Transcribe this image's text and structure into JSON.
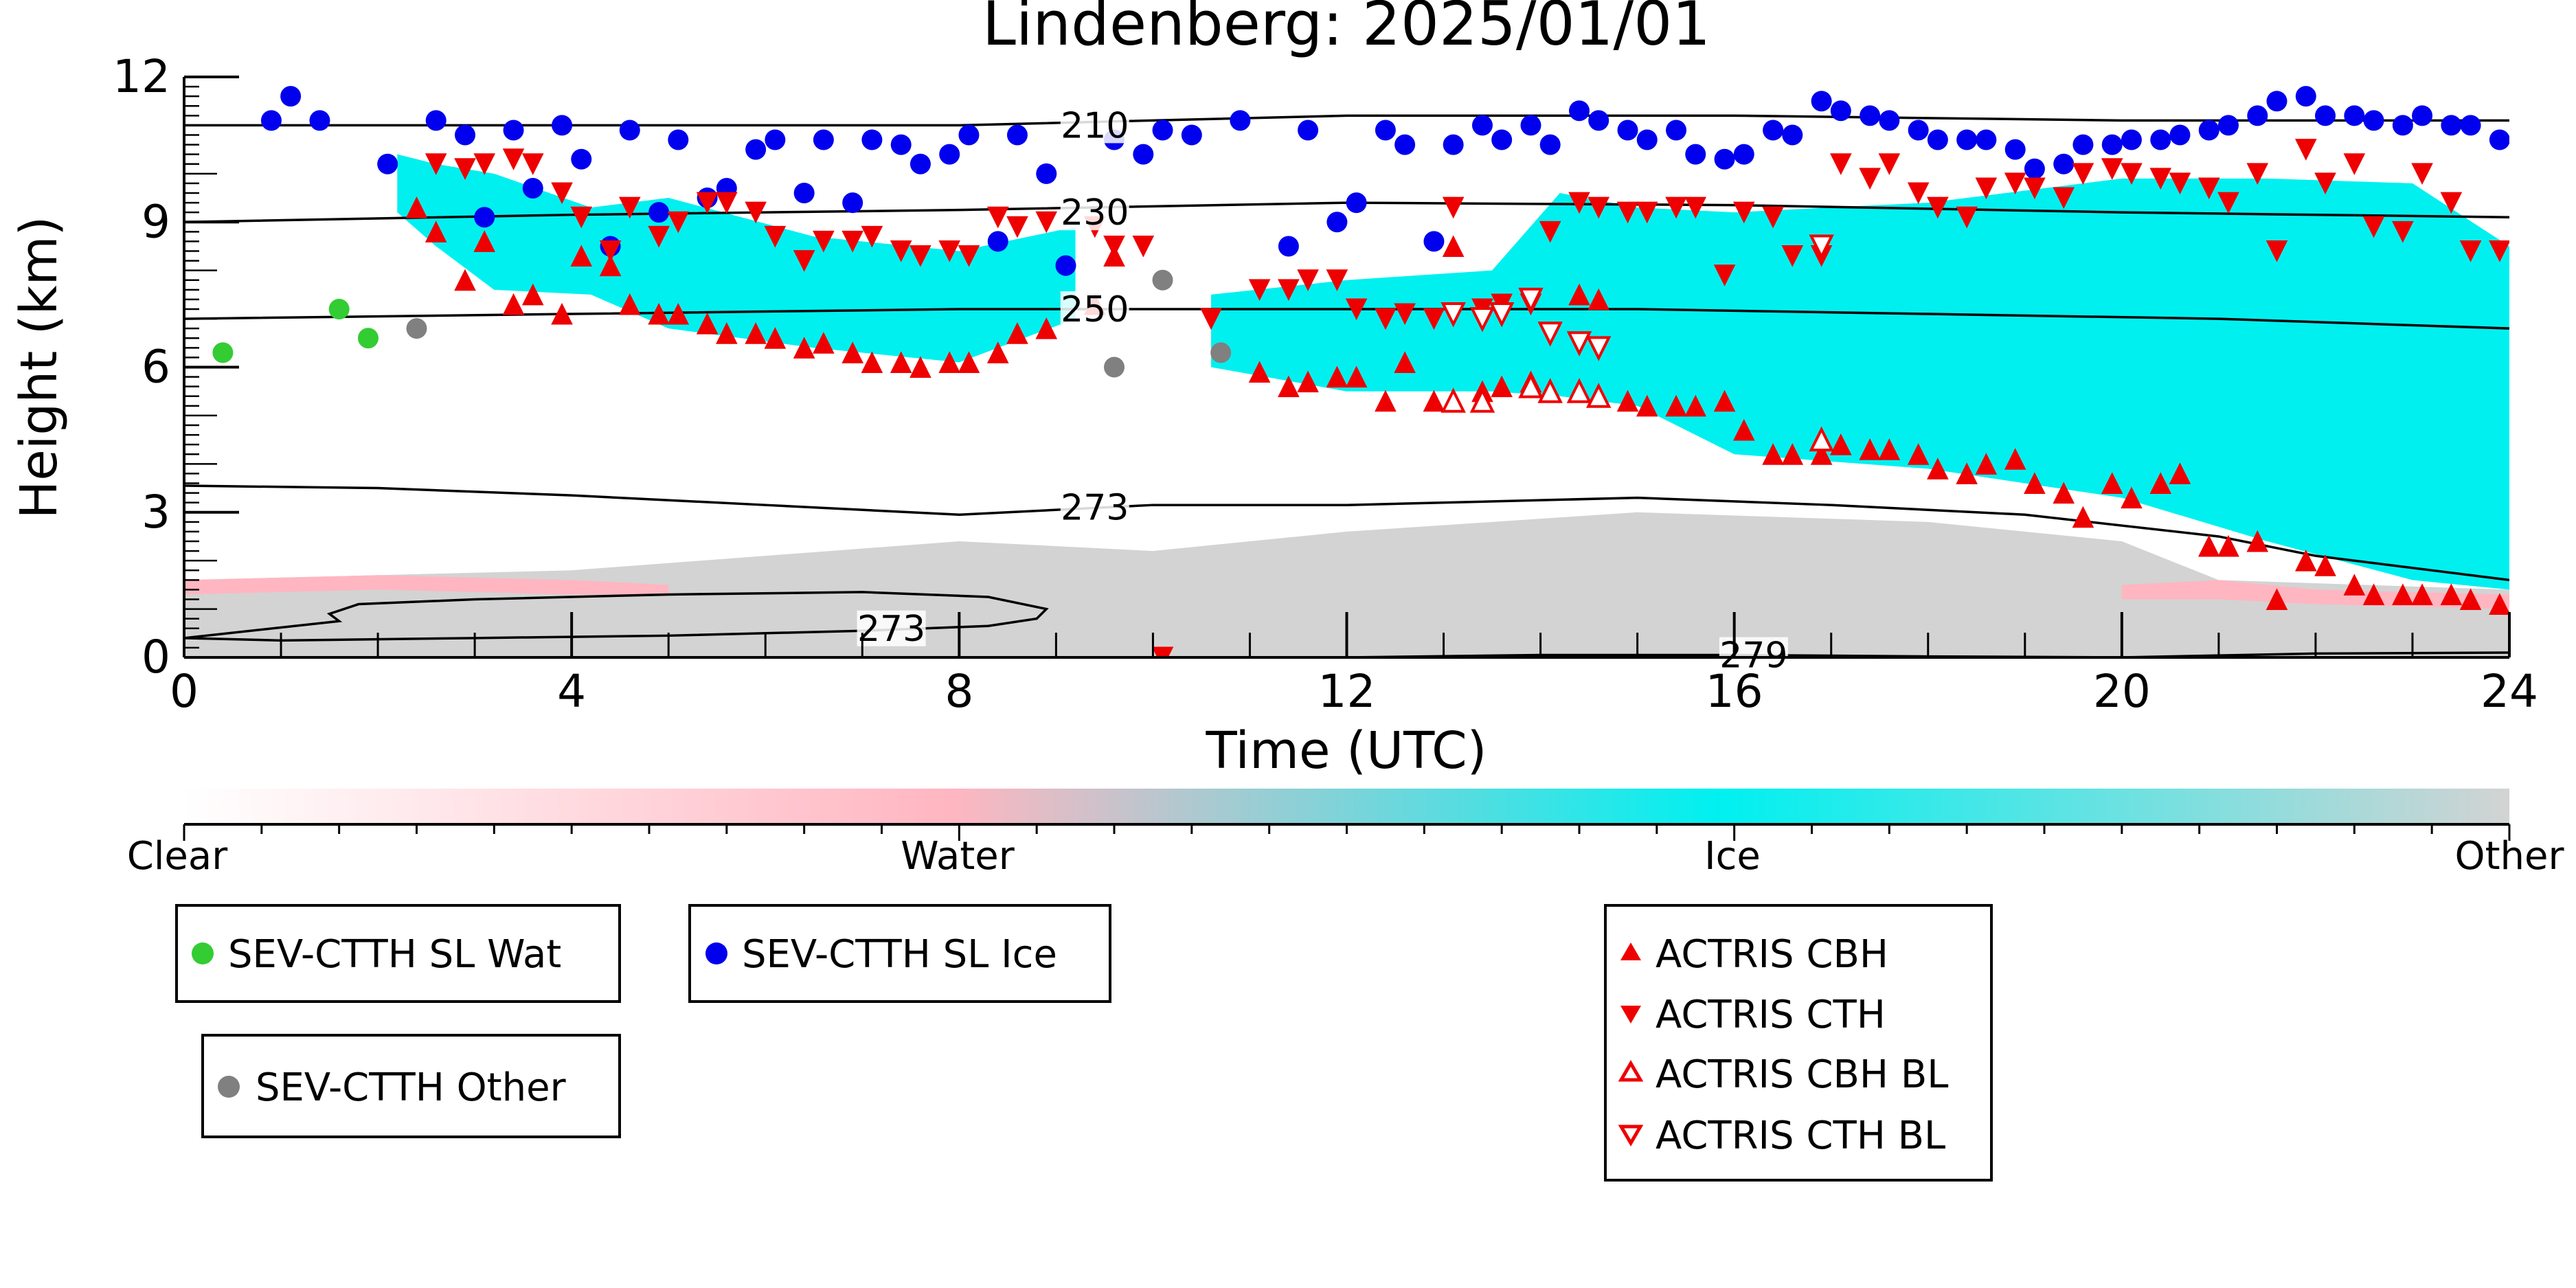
{
  "chart_data": {
    "type": "scatter",
    "title": "Lindenberg: 2025/01/01",
    "xlabel": "Time (UTC)",
    "ylabel": "Height (km)",
    "xlim": [
      0,
      24
    ],
    "ylim": [
      0,
      12
    ],
    "xticks": [
      0,
      4,
      8,
      12,
      16,
      20,
      24
    ],
    "yticks": [
      0,
      3,
      6,
      9,
      12
    ],
    "background_field": {
      "description_classes": [
        "Clear",
        "Water",
        "Ice",
        "Other"
      ],
      "colorbar_labels": [
        "Clear",
        "Water",
        "Ice",
        "Other"
      ],
      "colorbar_colors": [
        "#ffffff",
        "#ffb6c1",
        "#00ffff",
        "#d3d3d3"
      ],
      "ice_regions": [
        {
          "x": [
            2.2,
            2.6,
            3.2,
            4.2,
            5.0,
            6.5,
            8.0,
            9.2
          ],
          "top": [
            10.4,
            10.2,
            10.0,
            9.3,
            9.5,
            8.7,
            8.4,
            8.9
          ],
          "bottom": [
            9.2,
            8.5,
            7.6,
            7.5,
            6.8,
            6.4,
            6.1,
            7.0
          ]
        },
        {
          "x": [
            10.6,
            12.0,
            13.5,
            14.2,
            15.0,
            16.0,
            18.0,
            20.0,
            21.5,
            23.0,
            24.0
          ],
          "top": [
            7.5,
            7.8,
            8.0,
            9.6,
            9.3,
            9.2,
            9.4,
            9.9,
            9.9,
            9.8,
            8.5
          ],
          "bottom": [
            6.0,
            5.5,
            5.5,
            5.4,
            5.2,
            4.2,
            3.9,
            3.3,
            2.4,
            1.6,
            1.4
          ]
        }
      ],
      "other_regions": [
        {
          "x": [
            0.0,
            4.0,
            8.0,
            10.0,
            12.0,
            15.0,
            18.0,
            20.0,
            21.0,
            24.0
          ],
          "top": [
            1.6,
            1.8,
            2.4,
            2.2,
            2.6,
            3.0,
            2.8,
            2.4,
            1.6,
            1.4
          ],
          "bottom": [
            0,
            0,
            0,
            0,
            0,
            0,
            0,
            0,
            0,
            0
          ]
        }
      ],
      "water_regions": [
        {
          "x": [
            0.0,
            2.0,
            4.0,
            5.0
          ],
          "top": [
            1.6,
            1.7,
            1.6,
            1.5
          ],
          "bottom": [
            1.3,
            1.4,
            1.3,
            1.3
          ]
        },
        {
          "x": [
            20.0,
            21.0,
            22.0,
            24.0
          ],
          "top": [
            1.5,
            1.6,
            1.4,
            1.3
          ],
          "bottom": [
            1.2,
            1.2,
            1.1,
            1.0
          ]
        }
      ]
    },
    "contours": [
      {
        "label": "210",
        "label_x": 9.4,
        "label_y": 11.0,
        "x": [
          0,
          4,
          8,
          12,
          16,
          20,
          24
        ],
        "y": [
          11.0,
          11.0,
          11.0,
          11.2,
          11.2,
          11.1,
          11.1
        ]
      },
      {
        "label": "230",
        "label_x": 9.4,
        "label_y": 9.2,
        "x": [
          0,
          4,
          8,
          12,
          16,
          20,
          24
        ],
        "y": [
          9.0,
          9.15,
          9.25,
          9.4,
          9.35,
          9.2,
          9.1
        ]
      },
      {
        "label": "250",
        "label_x": 9.4,
        "label_y": 7.2,
        "x": [
          0,
          4,
          8,
          12,
          15,
          18,
          21,
          24
        ],
        "y": [
          7.0,
          7.1,
          7.2,
          7.2,
          7.2,
          7.1,
          7.0,
          6.8
        ]
      },
      {
        "label": "273",
        "label_x": 9.4,
        "label_y": 3.1,
        "x": [
          0,
          2,
          4,
          6,
          8,
          10,
          12,
          15,
          17,
          19,
          21,
          22,
          24
        ],
        "y": [
          3.55,
          3.5,
          3.35,
          3.15,
          2.95,
          3.15,
          3.15,
          3.3,
          3.15,
          2.95,
          2.5,
          2.1,
          1.6
        ]
      },
      {
        "label": "273",
        "label_x": 7.3,
        "label_y": 0.6,
        "closed": true,
        "x": [
          0,
          1.6,
          1.5,
          1.8,
          3.0,
          5.0,
          7.0,
          8.3,
          8.9,
          8.8,
          8.3,
          7.0,
          5.0,
          3.0,
          1.0,
          0
        ],
        "y": [
          0.4,
          0.75,
          0.9,
          1.1,
          1.2,
          1.3,
          1.35,
          1.25,
          1.0,
          0.8,
          0.65,
          0.55,
          0.45,
          0.4,
          0.35,
          0.4
        ]
      },
      {
        "label": "279",
        "label_x": 16.2,
        "label_y": 0.05,
        "x": [
          12,
          14,
          16,
          18,
          20,
          22,
          24
        ],
        "y": [
          0.0,
          0.05,
          0.05,
          0.02,
          0.0,
          0.08,
          0.1
        ]
      }
    ],
    "legend": [
      {
        "name": "SEV-CTTH SL Wat",
        "marker": "circle",
        "color": "#33cc33"
      },
      {
        "name": "SEV-CTTH SL Ice",
        "marker": "circle",
        "color": "#0000ee"
      },
      {
        "name": "SEV-CTTH Other",
        "marker": "circle",
        "color": "#808080"
      },
      {
        "name": "ACTRIS CBH",
        "marker": "triangle-up",
        "color": "#ee0000",
        "filled": true
      },
      {
        "name": "ACTRIS CTH",
        "marker": "triangle-down",
        "color": "#ee0000",
        "filled": true
      },
      {
        "name": "ACTRIS CBH BL",
        "marker": "triangle-up",
        "color": "#ee0000",
        "filled": false
      },
      {
        "name": "ACTRIS CTH BL",
        "marker": "triangle-down",
        "color": "#ee0000",
        "filled": false
      }
    ],
    "series": [
      {
        "name": "SEV-CTTH SL Wat",
        "marker": "circle",
        "color": "#33cc33",
        "x": [
          0.4,
          1.6,
          1.9
        ],
        "y": [
          6.3,
          7.2,
          6.6
        ]
      },
      {
        "name": "SEV-CTTH SL Ice",
        "marker": "circle",
        "color": "#0000ee",
        "x": [
          0.9,
          1.1,
          1.4,
          2.1,
          2.6,
          2.9,
          3.1,
          3.4,
          3.6,
          3.9,
          4.1,
          4.4,
          4.6,
          4.9,
          5.1,
          5.4,
          5.6,
          5.9,
          6.1,
          6.4,
          6.6,
          6.9,
          7.1,
          7.4,
          7.6,
          7.9,
          8.1,
          8.4,
          8.6,
          8.9,
          9.1,
          9.6,
          9.9,
          10.1,
          10.4,
          10.9,
          11.4,
          11.6,
          11.9,
          12.1,
          12.4,
          12.6,
          12.9,
          13.1,
          13.4,
          13.6,
          13.9,
          14.1,
          14.4,
          14.6,
          14.9,
          15.1,
          15.4,
          15.6,
          15.9,
          16.1,
          16.4,
          16.6,
          16.9,
          17.1,
          17.4,
          17.6,
          17.9,
          18.1,
          18.4,
          18.6,
          18.9,
          19.1,
          19.4,
          19.6,
          19.9,
          20.1,
          20.4,
          20.6,
          20.9,
          21.1,
          21.4,
          21.6,
          21.9,
          22.1,
          22.4,
          22.6,
          22.9,
          23.1,
          23.4,
          23.6,
          23.9
        ],
        "y": [
          11.1,
          11.6,
          11.1,
          10.2,
          11.1,
          10.8,
          9.1,
          10.9,
          9.7,
          11.0,
          10.3,
          8.5,
          10.9,
          9.2,
          10.7,
          9.5,
          9.7,
          10.5,
          10.7,
          9.6,
          10.7,
          9.4,
          10.7,
          10.6,
          10.2,
          10.4,
          10.8,
          8.6,
          10.8,
          10.0,
          8.1,
          10.7,
          10.4,
          10.9,
          10.8,
          11.1,
          8.5,
          10.9,
          9.0,
          9.4,
          10.9,
          10.6,
          8.6,
          10.6,
          11.0,
          10.7,
          11.0,
          10.6,
          11.3,
          11.1,
          10.9,
          10.7,
          10.9,
          10.4,
          10.3,
          10.4,
          10.9,
          10.8,
          11.5,
          11.3,
          11.2,
          11.1,
          10.9,
          10.7,
          10.7,
          10.7,
          10.5,
          10.1,
          10.2,
          10.6,
          10.6,
          10.7,
          10.7,
          10.8,
          10.9,
          11.0,
          11.2,
          11.5,
          11.6,
          11.2,
          11.2,
          11.1,
          11.0,
          11.2,
          11.0,
          11.0,
          10.7
        ]
      },
      {
        "name": "SEV-CTTH Other",
        "marker": "circle",
        "color": "#808080",
        "x": [
          2.4,
          9.6,
          10.1,
          10.7
        ],
        "y": [
          6.8,
          6.0,
          7.8,
          6.3
        ]
      },
      {
        "name": "ACTRIS CBH",
        "marker": "triangle-up",
        "color": "#ee0000",
        "filled": true,
        "x": [
          2.4,
          2.6,
          2.9,
          3.1,
          3.4,
          3.6,
          3.9,
          4.1,
          4.4,
          4.6,
          4.9,
          5.1,
          5.4,
          5.6,
          5.9,
          6.1,
          6.4,
          6.6,
          6.9,
          7.1,
          7.4,
          7.6,
          7.9,
          8.1,
          8.4,
          8.6,
          8.9,
          9.4,
          9.6,
          10.1,
          11.1,
          11.4,
          11.6,
          11.9,
          12.1,
          12.4,
          12.6,
          12.9,
          13.1,
          13.4,
          13.6,
          13.9,
          14.4,
          14.6,
          14.9,
          15.1,
          15.4,
          15.6,
          15.9,
          16.1,
          16.4,
          16.6,
          16.9,
          17.1,
          17.4,
          17.6,
          17.9,
          18.1,
          18.4,
          18.6,
          18.9,
          19.1,
          19.4,
          19.6,
          19.9,
          20.1,
          20.4,
          20.6,
          20.9,
          21.1,
          21.4,
          21.6,
          21.9,
          22.1,
          22.4,
          22.6,
          22.9,
          23.1,
          23.4,
          23.6,
          23.9
        ],
        "y": [
          9.3,
          8.8,
          7.8,
          8.6,
          7.3,
          7.5,
          7.1,
          8.3,
          8.1,
          7.3,
          7.1,
          7.1,
          6.9,
          6.7,
          6.7,
          6.6,
          6.4,
          6.5,
          6.3,
          6.1,
          6.1,
          6.0,
          6.1,
          6.1,
          6.3,
          6.7,
          6.8,
          7.3,
          8.3,
          0.0,
          5.9,
          5.6,
          5.7,
          5.8,
          5.8,
          5.3,
          6.1,
          5.3,
          8.5,
          5.5,
          5.6,
          5.7,
          7.5,
          7.4,
          5.3,
          5.2,
          5.2,
          5.2,
          5.3,
          4.7,
          4.2,
          4.2,
          4.2,
          4.4,
          4.3,
          4.3,
          4.2,
          3.9,
          3.8,
          4.0,
          4.1,
          3.6,
          3.4,
          2.9,
          3.6,
          3.3,
          3.6,
          3.8,
          2.3,
          2.3,
          2.4,
          1.2,
          2.0,
          1.9,
          1.5,
          1.3,
          1.3,
          1.3,
          1.3,
          1.2,
          1.1
        ]
      },
      {
        "name": "ACTRIS CTH",
        "marker": "triangle-down",
        "color": "#ee0000",
        "filled": true,
        "x": [
          2.6,
          2.9,
          3.1,
          3.4,
          3.6,
          3.9,
          4.1,
          4.4,
          4.6,
          4.9,
          5.1,
          5.4,
          5.6,
          5.9,
          6.1,
          6.4,
          6.6,
          6.9,
          7.1,
          7.4,
          7.6,
          7.9,
          8.1,
          8.4,
          8.6,
          8.9,
          9.4,
          9.6,
          9.9,
          10.1,
          10.6,
          11.1,
          11.4,
          11.6,
          11.9,
          12.1,
          12.4,
          12.6,
          12.9,
          13.1,
          13.4,
          13.6,
          13.9,
          14.1,
          14.4,
          14.6,
          14.9,
          15.1,
          15.4,
          15.6,
          15.9,
          16.1,
          16.4,
          16.6,
          16.9,
          17.1,
          17.4,
          17.6,
          17.9,
          18.1,
          18.4,
          18.6,
          18.9,
          19.1,
          19.4,
          19.6,
          19.9,
          20.1,
          20.4,
          20.6,
          20.9,
          21.1,
          21.4,
          21.6,
          21.9,
          22.1,
          22.4,
          22.6,
          22.9,
          23.1,
          23.4,
          23.6,
          23.9
        ],
        "y": [
          10.2,
          10.1,
          10.2,
          10.3,
          10.2,
          9.6,
          9.1,
          8.4,
          9.3,
          8.7,
          9.0,
          9.4,
          9.4,
          9.2,
          8.7,
          8.2,
          8.6,
          8.6,
          8.7,
          8.4,
          8.3,
          8.4,
          8.3,
          9.1,
          8.9,
          9.0,
          8.9,
          8.5,
          8.5,
          0.0,
          7.0,
          7.6,
          7.6,
          7.8,
          7.8,
          7.2,
          7.0,
          7.1,
          7.0,
          9.3,
          7.2,
          7.3,
          7.3,
          8.8,
          9.4,
          9.3,
          9.2,
          9.2,
          9.3,
          9.3,
          7.9,
          9.2,
          9.1,
          8.3,
          8.3,
          10.2,
          9.9,
          10.2,
          9.6,
          9.3,
          9.1,
          9.7,
          9.8,
          9.7,
          9.5,
          10.0,
          10.1,
          10.0,
          9.9,
          9.8,
          9.7,
          9.4,
          10.0,
          8.4,
          10.5,
          9.8,
          10.2,
          8.9,
          8.8,
          10.0,
          9.4,
          8.4,
          8.4
        ]
      },
      {
        "name": "ACTRIS CBH BL",
        "marker": "triangle-up",
        "color": "#ee0000",
        "filled": false,
        "x": [
          13.1,
          13.4,
          13.9,
          14.1,
          14.4,
          14.6,
          16.9
        ],
        "y": [
          5.3,
          5.3,
          5.6,
          5.5,
          5.5,
          5.4,
          4.5
        ]
      },
      {
        "name": "ACTRIS CTH BL",
        "marker": "triangle-down",
        "color": "#ee0000",
        "filled": false,
        "x": [
          13.1,
          13.4,
          13.6,
          13.9,
          14.1,
          14.4,
          14.6,
          16.9
        ],
        "y": [
          7.1,
          7.0,
          7.1,
          7.4,
          6.7,
          6.5,
          6.4,
          8.5
        ]
      }
    ]
  }
}
